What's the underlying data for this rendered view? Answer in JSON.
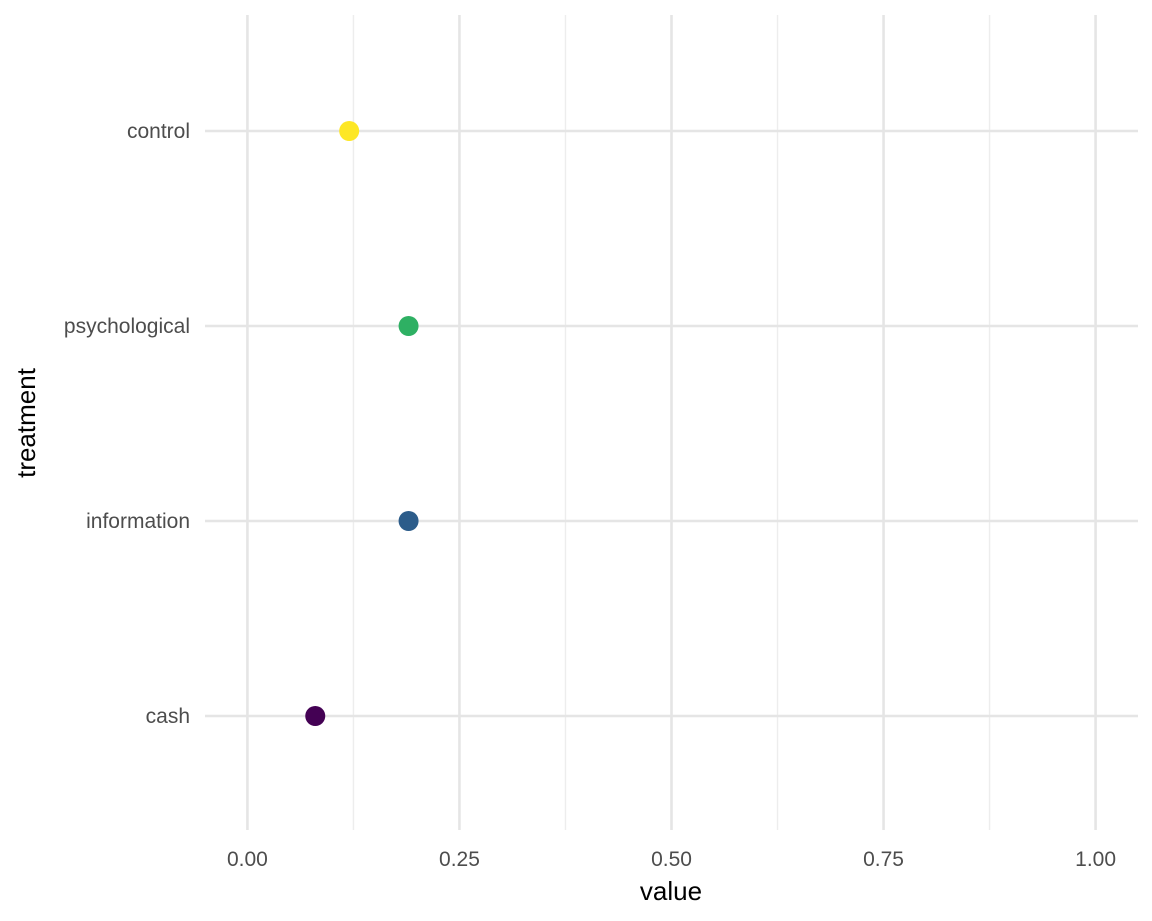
{
  "chart_data": {
    "type": "scatter",
    "xlabel": "value",
    "ylabel": "treatment",
    "xlim": [
      -0.05,
      1.05
    ],
    "x_ticks": [
      0.0,
      0.25,
      0.5,
      0.75,
      1.0
    ],
    "x_tick_labels": [
      "0.00",
      "0.25",
      "0.50",
      "0.75",
      "1.00"
    ],
    "x_minor_ticks": [
      0.125,
      0.375,
      0.625,
      0.875
    ],
    "categories": [
      "cash",
      "information",
      "psychological",
      "control"
    ],
    "points": [
      {
        "category": "cash",
        "value": 0.08,
        "color": "#440154"
      },
      {
        "category": "information",
        "value": 0.19,
        "color": "#2c5c8a"
      },
      {
        "category": "psychological",
        "value": 0.19,
        "color": "#2eb063"
      },
      {
        "category": "control",
        "value": 0.12,
        "color": "#fde725"
      }
    ],
    "grid": true,
    "legend": "none"
  }
}
